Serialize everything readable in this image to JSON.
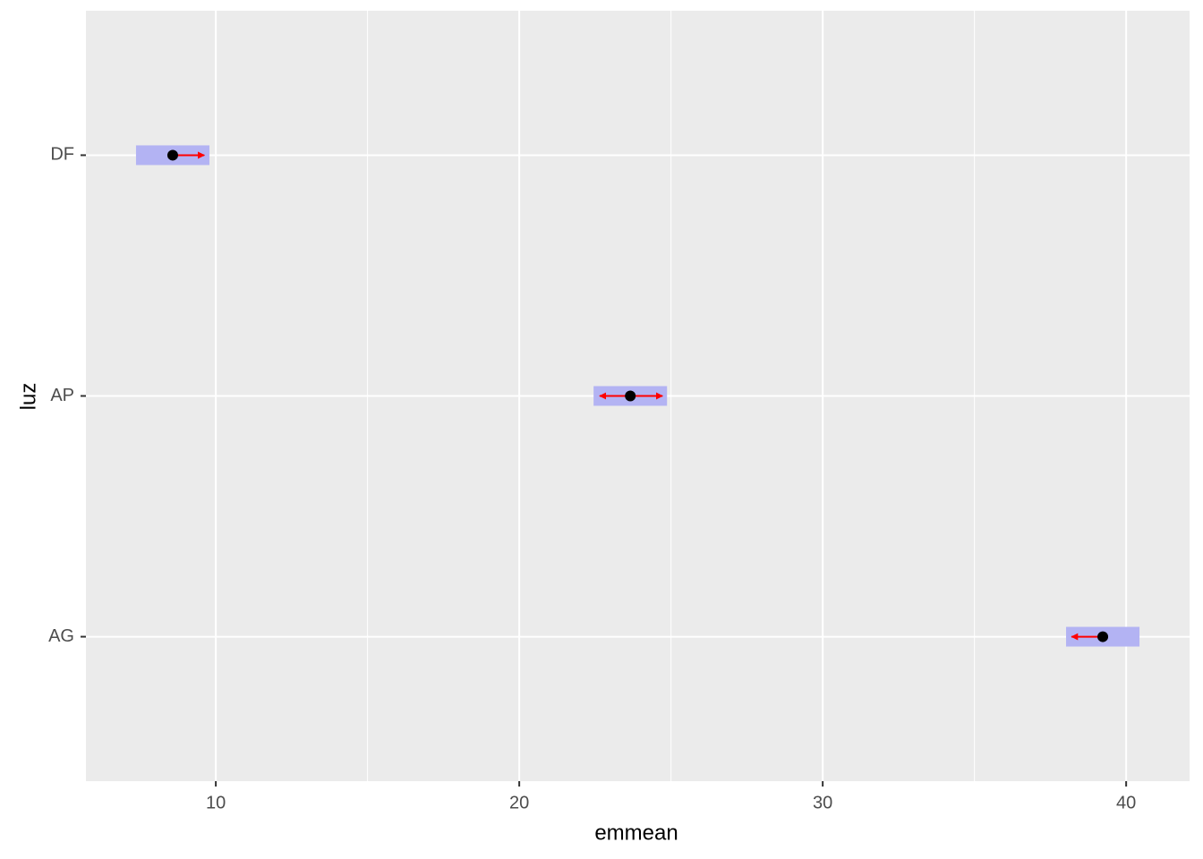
{
  "chart_data": {
    "type": "emmeans",
    "x_label": "emmean",
    "y_label": "luz",
    "categories": [
      "AG",
      "AP",
      "DF"
    ],
    "values": [
      39.23,
      23.66,
      8.58
    ],
    "ci_low": [
      38.02,
      22.45,
      7.37
    ],
    "ci_high": [
      40.44,
      24.87,
      9.79
    ],
    "arrow_left": [
      38.2,
      22.65,
      null
    ],
    "arrow_right": [
      null,
      24.72,
      9.62
    ],
    "ci_color": "#b3b3f3",
    "arrow_color": "#ff0000",
    "point_color": "#000000",
    "xlim": [
      5.72,
      42.09
    ],
    "xticks": [
      10,
      20,
      30,
      40
    ],
    "x_minor_ticks": [
      15,
      25,
      35
    ],
    "grid": true
  }
}
